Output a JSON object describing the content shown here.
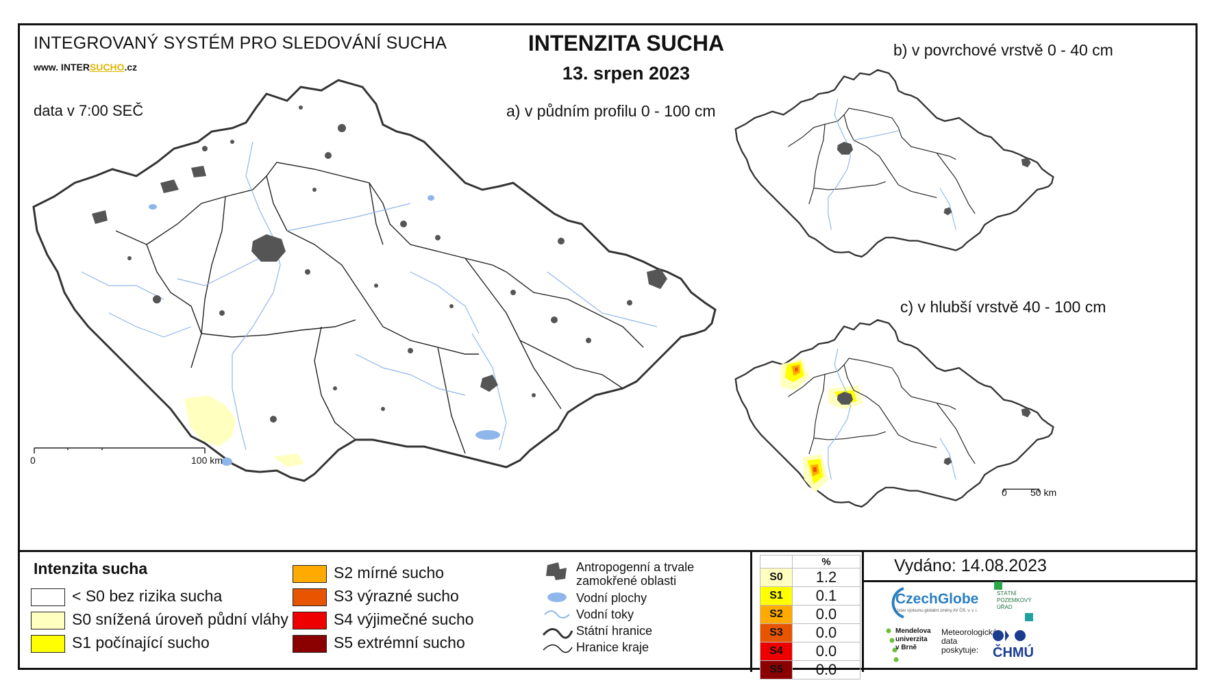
{
  "header": {
    "system_title": "INTEGROVANÝ SYSTÉM PRO SLEDOVÁNÍ SUCHA",
    "www_prefix": "www. INTER",
    "www_highlight": "SUCHO",
    "www_suffix": ".cz",
    "data_time": "data v 7:00 SEČ",
    "title": "INTENZITA SUCHA",
    "date": "13. srpen 2023"
  },
  "maps": {
    "a_label": "a) v půdním profilu 0 - 100 cm",
    "b_label": "b) v povrchové vrstvě 0 - 40 cm",
    "c_label": "c) v hlubší vrstvě 40 - 100 cm",
    "scale_main": {
      "start": "0",
      "end": "100 km"
    },
    "scale_small": {
      "start": "0",
      "end": "50 km"
    }
  },
  "legend": {
    "title": "Intenzita sucha",
    "classes": [
      {
        "label": "< S0 bez rizika sucha",
        "color": "#ffffff"
      },
      {
        "label": "S0 snížená úroveň půdní vláhy",
        "color": "#ffffc0"
      },
      {
        "label": "S1 počínající sucho",
        "color": "#ffff00"
      },
      {
        "label": "S2 mírné sucho",
        "color": "#ffaa00"
      },
      {
        "label": "S3 výrazné sucho",
        "color": "#e85500"
      },
      {
        "label": "S4 výjimečné sucho",
        "color": "#ee0000"
      },
      {
        "label": "S5 extrémní sucho",
        "color": "#8b0000"
      }
    ],
    "symbols": [
      {
        "label_line1": "Antropogenní a trvale",
        "label_line2": "zamokřené oblasti"
      },
      {
        "label_line1": "Vodní plochy"
      },
      {
        "label_line1": "Vodní toky"
      },
      {
        "label_line1": "Státní hranice"
      },
      {
        "label_line1": "Hranice kraje"
      }
    ]
  },
  "stats": {
    "header": "%",
    "rows": [
      {
        "code": "S0",
        "value": "1.2",
        "color": "#ffffc0"
      },
      {
        "code": "S1",
        "value": "0.1",
        "color": "#ffff00"
      },
      {
        "code": "S2",
        "value": "0.0",
        "color": "#ffaa00"
      },
      {
        "code": "S3",
        "value": "0.0",
        "color": "#e85500"
      },
      {
        "code": "S4",
        "value": "0.0",
        "color": "#ee0000"
      },
      {
        "code": "S5",
        "value": "0.0",
        "color": "#8b0000"
      }
    ]
  },
  "issued": "Vydáno: 14.08.2023",
  "logos": {
    "czechglobe": "CzechGlobe",
    "czechglobe_sub": "Ústav výzkumu globální změny AV ČR, v. v. i.",
    "spu_line1": "STÁTNÍ",
    "spu_line2": "POZEMKOVÝ",
    "spu_line3": "ÚŘAD",
    "mendel_line1": "Mendelova",
    "mendel_line2": "univerzita",
    "mendel_line3": "v Brně",
    "meteo_line1": "Meteorologická",
    "meteo_line2": "data",
    "meteo_line3": "poskytuje:",
    "chmu": "ČHMÚ"
  }
}
